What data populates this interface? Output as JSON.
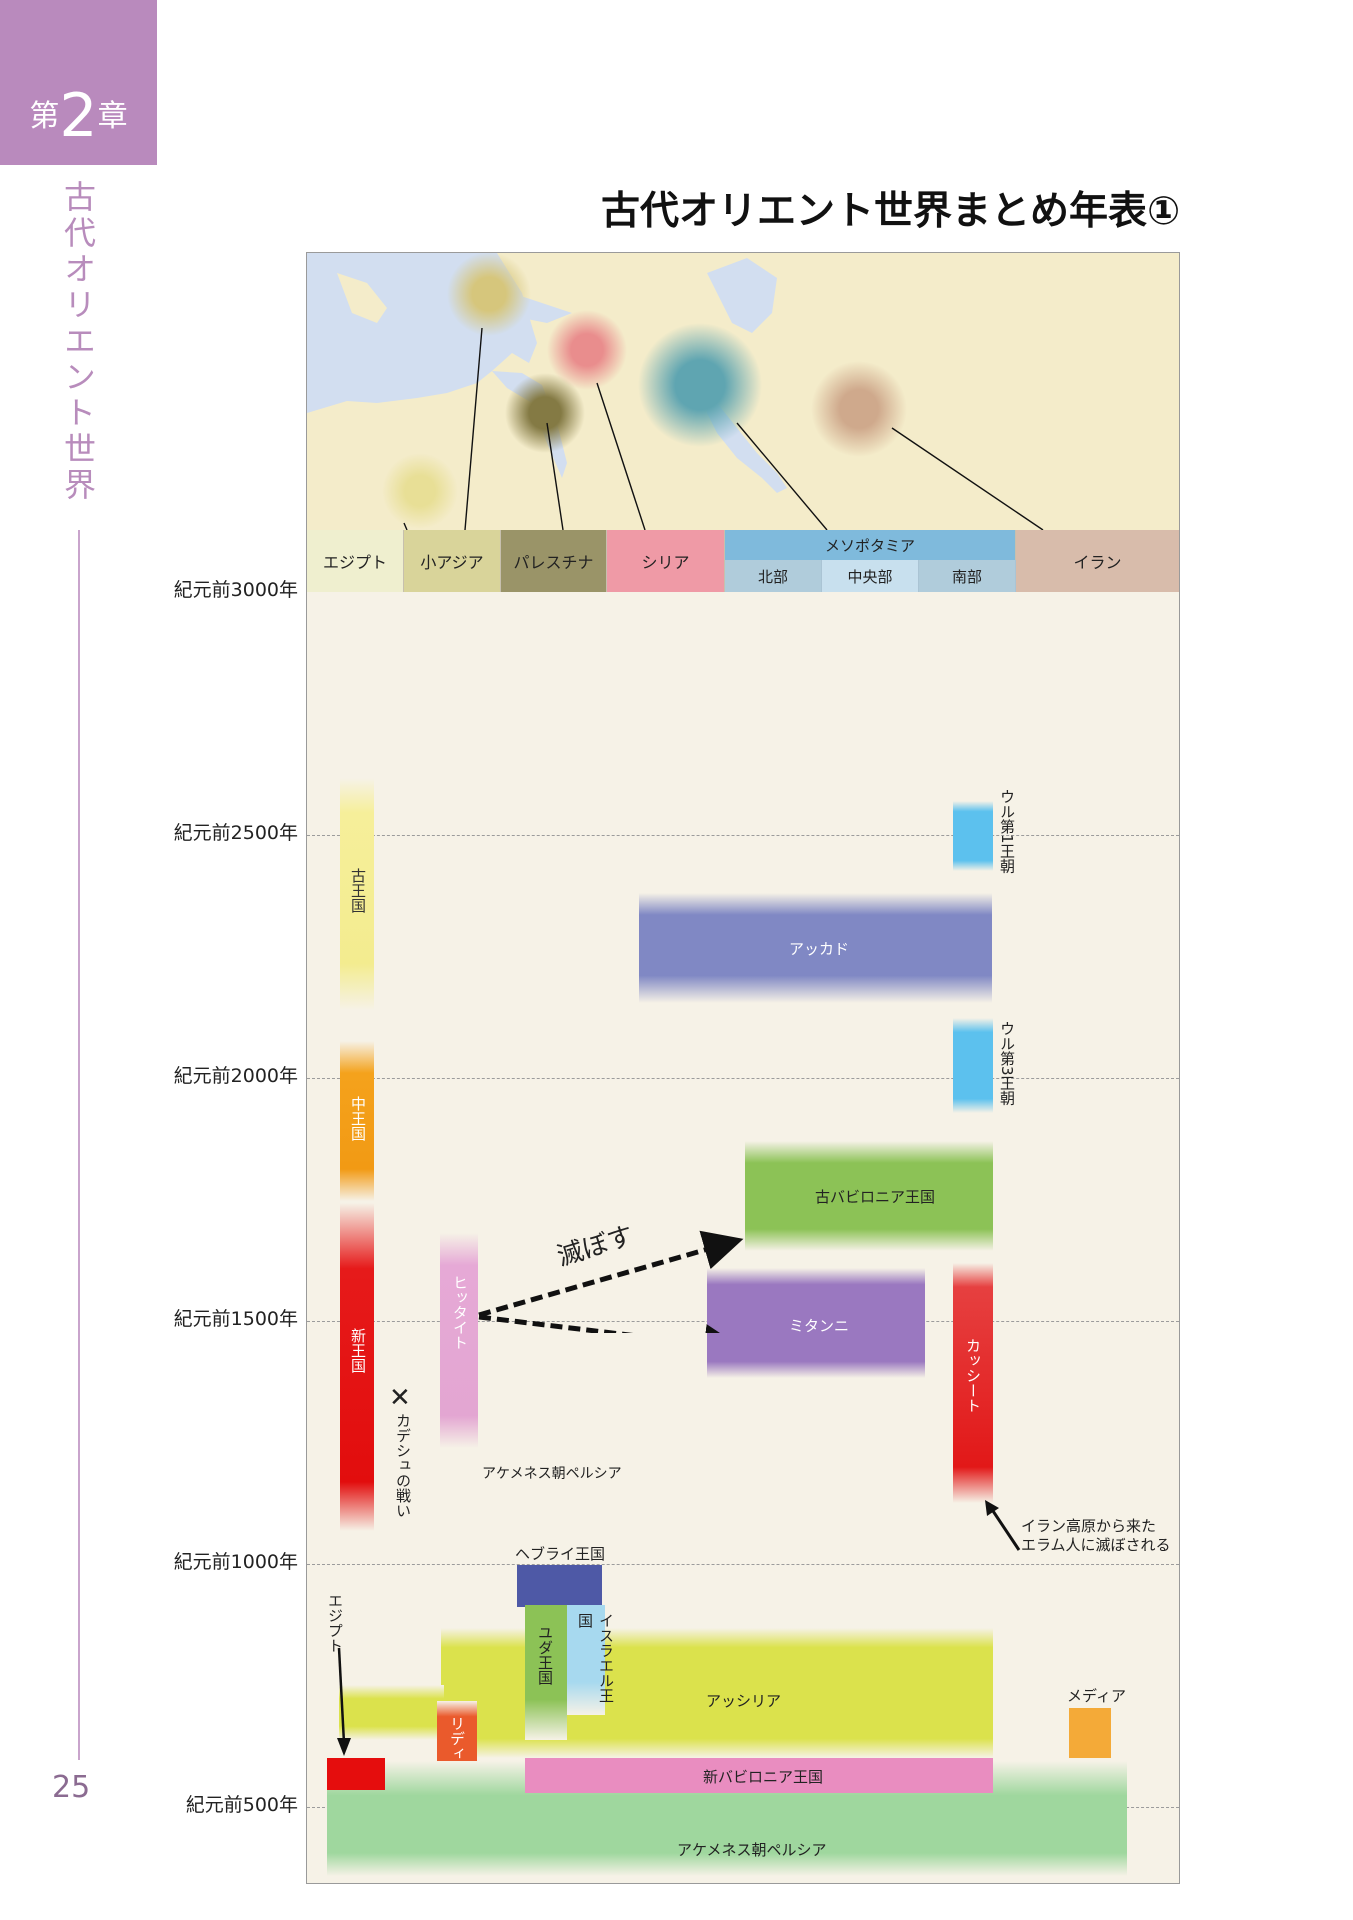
{
  "chapter": {
    "prefix": "第",
    "number": "2",
    "suffix": "章"
  },
  "side_title": "古代オリエント世界",
  "page_number": "25",
  "title": "古代オリエント世界まとめ年表①",
  "regions": {
    "egypt": "エジプト",
    "asia_minor": "小アジア",
    "palestine": "パレスチナ",
    "syria": "シリア",
    "mesopotamia": "メソポタミア",
    "meso_north": "北部",
    "meso_central": "中央部",
    "meso_south": "南部",
    "iran": "イラン"
  },
  "years": [
    "紀元前3000年",
    "紀元前2500年",
    "紀元前2000年",
    "紀元前1500年",
    "紀元前1000年",
    "紀元前500年"
  ],
  "events": {
    "old_kingdom": "古王国",
    "middle_kingdom": "中王国",
    "new_kingdom": "新王国",
    "kadesh": "カデシュの戦い",
    "hittite": "ヒッタイト",
    "achaemenid_note": "アケメネス朝ペルシア",
    "akkad": "アッカド",
    "ur1": "ウル第1王朝",
    "ur3": "ウル第3王朝",
    "old_babylonia": "古バビロニア王国",
    "mitanni": "ミタンニ",
    "kassite": "カッシート",
    "destroy": "滅ぼす",
    "elam_note_1": "イラン高原から来た",
    "elam_note_2": "エラム人に滅ぼされる",
    "hebrew": "ヘブライ王国",
    "judah": "ユダ王国",
    "israel": "イスラエル王国",
    "assyria": "アッシリア",
    "lydia": "リディア",
    "media": "メディア",
    "egypt_late": "エジプト",
    "neo_babylonia": "新バビロニア王国",
    "achaemenid": "アケメネス朝ペルシア"
  },
  "colors": {
    "chapter_tab": "#b98abd",
    "egypt": "#efefcf",
    "asia_minor": "#d9d49a",
    "palestine": "#9a9468",
    "syria": "#ef9aa6",
    "mesopotamia": "#7fbadc",
    "iran": "#d8bcab",
    "akkad": "#8088c4",
    "old_babylonia": "#8cc256",
    "mitanni": "#9a78c0",
    "assyria": "#dbe24c",
    "neo_babylonia": "#e98dc0",
    "achaemenid": "#9fd79e"
  }
}
